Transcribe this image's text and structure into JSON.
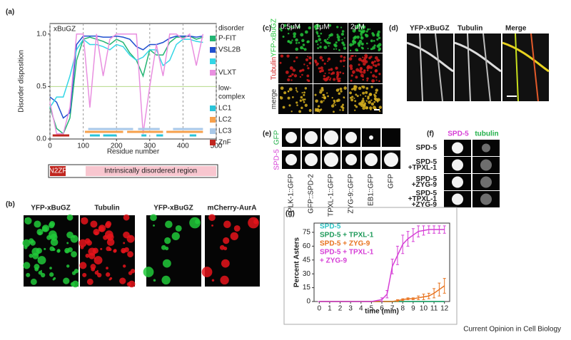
{
  "figure": {
    "panel_labels": [
      "(a)",
      "(b)",
      "(c)",
      "(d)",
      "(e)",
      "(f)",
      "(g)"
    ],
    "domain_bar": {
      "zinc_finger": "N2ZF",
      "disordered": "Intrinsically disordered region"
    },
    "panel_b": {
      "labels": [
        "YFP-xBuGZ",
        "Tubulin",
        "YFP-xBuGZ",
        "mCherry-AurA"
      ]
    },
    "panel_c": {
      "columns": [
        "0.5μM",
        "1μM",
        "2μM"
      ],
      "rows": [
        "YFP-xBuGZ",
        "Tubulin",
        "merge"
      ]
    },
    "panel_d": {
      "labels": [
        "YFP-xBuGZ",
        "Tubulin",
        "Merge"
      ]
    },
    "panel_e": {
      "rows": [
        "GFP",
        "SPD-5"
      ],
      "columns": [
        "PLK-1::GFP",
        "GFP::SPD-2",
        "TPXL-1::GFP",
        "ZYG-9::GFP",
        "EB1::GFP",
        "GFP"
      ]
    },
    "panel_f": {
      "columns": [
        "SPD-5",
        "tubulin"
      ],
      "rows": [
        [
          "SPD-5"
        ],
        [
          "SPD-5",
          "+TPXL-1"
        ],
        [
          "SPD-5",
          "+ZYG-9"
        ],
        [
          "SPD-5",
          "+TPXL-1",
          "+ZYG-9"
        ]
      ]
    },
    "credit": "Current Opinion in Cell Biology"
  },
  "chart_data": [
    {
      "type": "line",
      "title": "xBuGZ",
      "x_label": "Residue number",
      "y_label": "Disorder disposition",
      "x": [
        0,
        20,
        40,
        60,
        80,
        100,
        120,
        140,
        160,
        180,
        200,
        220,
        240,
        260,
        280,
        300,
        320,
        340,
        360,
        380,
        400,
        420,
        440,
        460
      ],
      "xlim": [
        0,
        500
      ],
      "xticks": [
        0,
        100,
        200,
        300,
        400,
        500
      ],
      "ylim": [
        0,
        1.1
      ],
      "yticks": [
        {
          "value": 0,
          "label": "0.0"
        },
        0.5,
        {
          "value": 1,
          "label": "1.0"
        }
      ],
      "x_grid": true,
      "reference_line": 0.5,
      "legend_title": "disorder",
      "series": [
        {
          "name": "P-FIT",
          "color": "#22b573",
          "values": [
            0.3,
            0.1,
            0.05,
            0.2,
            0.75,
            0.95,
            0.97,
            0.95,
            0.93,
            0.9,
            0.95,
            0.92,
            0.82,
            0.75,
            0.6,
            0.85,
            0.8,
            0.8,
            0.92,
            0.97,
            0.97,
            0.98,
            0.95,
            0.97
          ]
        },
        {
          "name": "VSL2B",
          "color": "#1f4fcf",
          "values": [
            0.4,
            0.35,
            0.2,
            0.25,
            0.9,
            0.98,
            0.98,
            0.98,
            0.97,
            0.97,
            0.98,
            0.97,
            0.95,
            0.88,
            0.85,
            0.9,
            0.9,
            0.92,
            0.96,
            0.98,
            0.98,
            0.98,
            0.97,
            0.98
          ]
        },
        {
          "name": null,
          "color": "#33d6e6",
          "values": [
            0.3,
            0.4,
            0.4,
            0.6,
            0.85,
            0.95,
            0.9,
            0.9,
            0.88,
            0.85,
            0.9,
            0.88,
            0.8,
            0.75,
            0.78,
            0.85,
            0.85,
            0.7,
            0.75,
            0.9,
            0.95,
            0.95,
            0.93,
            0.92
          ]
        },
        {
          "name": "VLXT",
          "color": "#e98fe0",
          "values": [
            0.35,
            0.05,
            0.05,
            0.3,
            1.0,
            1.0,
            0.3,
            1.0,
            0.6,
            0.95,
            1.0,
            1.0,
            1.0,
            1.0,
            0.05,
            0.5,
            0.9,
            0.6,
            1.0,
            1.0,
            0.95,
            1.0,
            0.7,
            1.0
          ]
        }
      ],
      "regions_title": [
        "low-",
        "complex"
      ],
      "regions": [
        {
          "name": "LC1",
          "color": "#29c4d9",
          "ranges": [
            [
              120,
              150
            ],
            [
              160,
              200
            ],
            [
              275,
              290
            ],
            [
              320,
              340
            ],
            [
              420,
              440
            ]
          ]
        },
        {
          "name": "LC2",
          "color": "#f7a04b",
          "ranges": [
            [
              105,
              220
            ],
            [
              232,
              340
            ],
            [
              350,
              460
            ]
          ]
        },
        {
          "name": "LC3",
          "color": "#a9c8e8",
          "ranges": [
            [
              115,
              250
            ],
            [
              265,
              330
            ],
            [
              370,
              460
            ]
          ]
        },
        {
          "name": "ZnF",
          "color": "#c0261f",
          "ranges": [
            [
              8,
              58
            ]
          ]
        }
      ]
    },
    {
      "type": "line",
      "x_label": "time (min)",
      "y_label": "Percent Asters",
      "x": [
        0,
        1,
        2,
        3,
        4,
        5,
        6,
        6.5,
        7,
        7.5,
        8,
        8.5,
        9,
        9.5,
        10,
        10.5,
        11,
        11.5,
        12
      ],
      "xlim": [
        -0.5,
        12.5
      ],
      "xticks": [
        0,
        1,
        2,
        3,
        4,
        5,
        6,
        7,
        8,
        9,
        10,
        11,
        12
      ],
      "ylim": [
        0,
        85
      ],
      "yticks": [
        0,
        15,
        30,
        45,
        60,
        75
      ],
      "series": [
        {
          "name": [
            "SPD-5"
          ],
          "color": "#2ec4c4",
          "values": [
            0,
            0,
            0,
            0,
            0,
            0,
            0,
            0,
            0,
            0,
            0,
            0,
            0,
            0,
            0,
            0,
            0,
            0,
            0
          ]
        },
        {
          "name": [
            "SPD-5 + TPXL-1"
          ],
          "color": "#1e9a5a",
          "values": [
            0,
            0,
            0,
            0,
            0,
            0,
            0,
            0,
            0,
            0,
            0,
            0,
            0,
            0,
            0,
            0,
            0,
            0,
            0
          ]
        },
        {
          "name": [
            "SPD-5 + ZYG-9"
          ],
          "color": "#e8731f",
          "values": [
            0,
            0,
            0,
            0,
            0,
            0,
            0,
            0,
            0,
            1,
            2,
            3,
            3,
            4,
            5,
            6,
            9,
            13,
            17
          ],
          "errors": [
            0,
            0,
            0,
            0,
            0,
            0,
            0,
            0,
            0,
            1,
            1,
            1,
            1,
            2,
            3,
            3,
            5,
            7,
            8
          ]
        },
        {
          "name": [
            "SPD-5 + TPXL-1",
            "+ ZYG-9"
          ],
          "color": "#d63fd6",
          "values": [
            0,
            0,
            0,
            0,
            0,
            0,
            2,
            8,
            38,
            50,
            62,
            68,
            72,
            76,
            77,
            78,
            78,
            78,
            78
          ],
          "errors": [
            0,
            0,
            0,
            0,
            0,
            0,
            2,
            4,
            8,
            10,
            10,
            8,
            7,
            6,
            5,
            4,
            4,
            4,
            4
          ]
        }
      ]
    }
  ]
}
